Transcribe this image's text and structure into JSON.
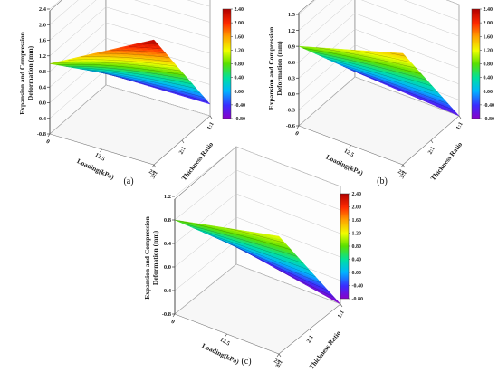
{
  "chart_data": [
    {
      "type": "surface3d",
      "panel_label": "(a)",
      "zlabel": "Expansion and Compression Deformation (mm)",
      "xlabel": "Loading(kPa)",
      "ylabel": "Thickness Ratio",
      "x_ticks": [
        "0",
        "12.5",
        "25"
      ],
      "y_ticks": [
        "3:1",
        "2:1",
        "1:1"
      ],
      "z_ticks": [
        "-0.8",
        "-0.4",
        "0.0",
        "0.4",
        "0.8",
        "1.2",
        "1.6",
        "2.0",
        "2.4"
      ],
      "zlim": [
        -0.8,
        2.4
      ],
      "colorbar_ticks": [
        "2.40",
        "2.00",
        "1.60",
        "1.20",
        "0.80",
        "0.40",
        "0.00",
        "-0.40",
        "-0.80"
      ],
      "colorbar_range": [
        -0.8,
        2.4
      ],
      "surface": {
        "loading": [
          0,
          25
        ],
        "thickness_ratio": [
          "3:1",
          "1:1"
        ],
        "z": [
          [
            1.0,
            2.4
          ],
          [
            -0.5,
            -0.5
          ]
        ]
      }
    },
    {
      "type": "surface3d",
      "panel_label": "(b)",
      "zlabel": "Expansion and Compression Deformation (mm)",
      "xlabel": "Loading(kPa)",
      "ylabel": "Thickness Ratio",
      "x_ticks": [
        "0",
        "12.5",
        "25"
      ],
      "y_ticks": [
        "3:1",
        "2:1",
        "1:1"
      ],
      "z_ticks": [
        "-0.6",
        "-0.3",
        "0.0",
        "0.3",
        "0.6",
        "0.9",
        "1.2",
        "1.5"
      ],
      "zlim": [
        -0.6,
        1.5
      ],
      "colorbar_ticks": [
        "2.40",
        "2.00",
        "1.60",
        "1.20",
        "0.80",
        "0.40",
        "0.00",
        "-0.40",
        "-0.80"
      ],
      "colorbar_range": [
        -0.8,
        2.4
      ],
      "surface": {
        "loading": [
          0,
          25
        ],
        "thickness_ratio": [
          "3:1",
          "1:1"
        ],
        "z": [
          [
            0.9,
            1.5
          ],
          [
            -0.5,
            -0.6
          ]
        ]
      }
    },
    {
      "type": "surface3d",
      "panel_label": "(c)",
      "zlabel": "Expansion and Compression Deformation (mm)",
      "xlabel": "Loading(kPa)",
      "ylabel": "Thickness Ratio",
      "x_ticks": [
        "0",
        "12.5",
        "25"
      ],
      "y_ticks": [
        "3:1",
        "2:1",
        "1:1"
      ],
      "z_ticks": [
        "-0.8",
        "-0.4",
        "0.0",
        "0.4",
        "0.8",
        "1.2"
      ],
      "zlim": [
        -0.8,
        1.2
      ],
      "colorbar_ticks": [
        "2.40",
        "2.00",
        "1.60",
        "1.20",
        "0.80",
        "0.40",
        "0.00",
        "-0.40",
        "-0.80"
      ],
      "colorbar_range": [
        -0.8,
        2.4
      ],
      "surface": {
        "loading": [
          0,
          25
        ],
        "thickness_ratio": [
          "3:1",
          "1:1"
        ],
        "z": [
          [
            0.8,
            1.2
          ],
          [
            -0.5,
            -0.8
          ]
        ]
      }
    }
  ]
}
